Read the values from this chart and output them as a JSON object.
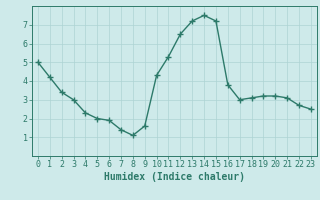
{
  "xlabel": "Humidex (Indice chaleur)",
  "x": [
    0,
    1,
    2,
    3,
    4,
    5,
    6,
    7,
    8,
    9,
    10,
    11,
    12,
    13,
    14,
    15,
    16,
    17,
    18,
    19,
    20,
    21,
    22,
    23
  ],
  "y": [
    5.0,
    4.2,
    3.4,
    3.0,
    2.3,
    2.0,
    1.9,
    1.4,
    1.1,
    1.6,
    4.3,
    5.3,
    6.5,
    7.2,
    7.5,
    7.2,
    3.8,
    3.0,
    3.1,
    3.2,
    3.2,
    3.1,
    2.7,
    2.5
  ],
  "line_color": "#2d7a6a",
  "marker": "+",
  "marker_size": 4,
  "marker_lw": 1.0,
  "bg_color": "#ceeaea",
  "grid_color": "#aed4d4",
  "ylim": [
    0,
    8
  ],
  "xlim_min": -0.5,
  "xlim_max": 23.5,
  "yticks": [
    1,
    2,
    3,
    4,
    5,
    6,
    7
  ],
  "xticks": [
    0,
    1,
    2,
    3,
    4,
    5,
    6,
    7,
    8,
    9,
    10,
    11,
    12,
    13,
    14,
    15,
    16,
    17,
    18,
    19,
    20,
    21,
    22,
    23
  ],
  "tick_color": "#2d7a6a",
  "label_color": "#2d7a6a",
  "xlabel_fontsize": 7,
  "tick_fontsize": 6,
  "linewidth": 1.0
}
